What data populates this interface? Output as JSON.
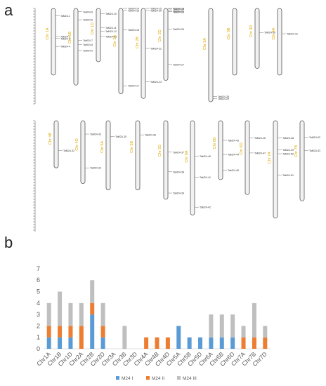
{
  "figure": {
    "panel_a_label": "a",
    "panel_b_label": "b"
  },
  "map": {
    "chromosomes": [
      {
        "name": "Chr 1A",
        "row": 1,
        "len": 100,
        "genes": [
          {
            "label": "TaM24-1",
            "pos": 11
          },
          {
            "label": "TaM24-2",
            "pos": 42
          },
          {
            "label": "TaM24-3",
            "pos": 45
          },
          {
            "label": "TaM24-4",
            "pos": 57
          }
        ]
      },
      {
        "name": "Chr 1B",
        "row": 1,
        "len": 115,
        "genes": [
          {
            "label": "TaM24-5",
            "pos": 5
          },
          {
            "label": "TaM24-6",
            "pos": 17
          },
          {
            "label": "TaM24-7",
            "pos": 48
          },
          {
            "label": "TaM24-8",
            "pos": 54
          },
          {
            "label": "TaM24-9",
            "pos": 63
          }
        ]
      },
      {
        "name": "Chr 1D",
        "row": 1,
        "len": 80,
        "genes": [
          {
            "label": "TaM24-10",
            "pos": 8
          },
          {
            "label": "TaM24-11",
            "pos": 29
          },
          {
            "label": "TaM24-12",
            "pos": 34
          },
          {
            "label": "TaM24-13",
            "pos": 42
          }
        ]
      },
      {
        "name": "Chr 2A",
        "row": 1,
        "len": 128,
        "genes": [
          {
            "label": "TaM24-14",
            "pos": 0
          },
          {
            "label": "TaM24-16",
            "pos": 3
          },
          {
            "label": "TaM24-18",
            "pos": 32
          },
          {
            "label": "TaM24-17",
            "pos": 116
          }
        ]
      },
      {
        "name": "Chr 2B",
        "row": 1,
        "len": 135,
        "genes": [
          {
            "label": "TaM24-15",
            "pos": 0
          },
          {
            "label": "TaM24-20",
            "pos": 3
          },
          {
            "label": "TaM24-22",
            "pos": 60
          },
          {
            "label": "TaM24-23",
            "pos": 110
          }
        ]
      },
      {
        "name": "Chr 2D",
        "row": 1,
        "len": 108,
        "genes": [
          {
            "label": "TaM24-19",
            "pos": 0
          },
          {
            "label": "TaM24-21",
            "pos": 4
          },
          {
            "label": "TaM24-24",
            "pos": 1
          },
          {
            "label": "TaM24-25",
            "pos": 5
          },
          {
            "label": "TaM24-26",
            "pos": 31
          },
          {
            "label": "TaM24-27",
            "pos": 84
          }
        ]
      },
      {
        "name": "Chr 3A",
        "row": 1,
        "len": 140,
        "genes": [
          {
            "label": "TaM24-28",
            "pos": 132
          },
          {
            "label": "TaM24-29",
            "pos": 135
          }
        ]
      },
      {
        "name": "Chr 3B",
        "row": 1,
        "len": 100,
        "genes": []
      },
      {
        "name": "Chr 3D",
        "row": 1,
        "len": 90,
        "genes": [
          {
            "label": "TaM24-30",
            "pos": 36
          }
        ]
      },
      {
        "name": "Chr 4A",
        "row": 1,
        "len": 100,
        "genes": [
          {
            "label": "TaM24-31",
            "pos": 38
          }
        ]
      },
      {
        "name": "Chr 4B",
        "row": 2,
        "len": 60,
        "genes": [
          {
            "label": "TaM24-32",
            "pos": 38
          }
        ]
      },
      {
        "name": "Chr 4D",
        "row": 2,
        "len": 80,
        "genes": [
          {
            "label": "TaM24-33",
            "pos": 17
          },
          {
            "label": "TaM24-34",
            "pos": 60
          }
        ]
      },
      {
        "name": "Chr 5A",
        "row": 2,
        "len": 88,
        "genes": [
          {
            "label": "TaM24-35",
            "pos": 20
          }
        ]
      },
      {
        "name": "Chr 5B",
        "row": 2,
        "len": 88,
        "genes": [
          {
            "label": "TaM24-36",
            "pos": 18
          }
        ]
      },
      {
        "name": "Chr 5D",
        "row": 2,
        "len": 100,
        "genes": [
          {
            "label": "TaM24-37",
            "pos": 40
          },
          {
            "label": "TaM24-38",
            "pos": 65
          },
          {
            "label": "TaM24-39",
            "pos": 92
          }
        ]
      },
      {
        "name": "Chr 6A",
        "row": 2,
        "len": 120,
        "genes": [
          {
            "label": "TaM24-40",
            "pos": 45
          },
          {
            "label": "TaM24-41",
            "pos": 72
          },
          {
            "label": "TaM24-42",
            "pos": 110
          }
        ]
      },
      {
        "name": "Chr 6B",
        "row": 2,
        "len": 75,
        "genes": [
          {
            "label": "TaM24-43",
            "pos": 25
          },
          {
            "label": "TaM24-44",
            "pos": 43
          },
          {
            "label": "TaM24-45",
            "pos": 63
          }
        ]
      },
      {
        "name": "Chr 6D",
        "row": 2,
        "len": 94,
        "genes": [
          {
            "label": "TaM24-46",
            "pos": 22
          },
          {
            "label": "TaM24-47",
            "pos": 41
          }
        ]
      },
      {
        "name": "Chr 7A",
        "row": 2,
        "len": 124,
        "genes": [
          {
            "label": "TaM24-48",
            "pos": 22
          },
          {
            "label": "TaM24-49",
            "pos": 37
          },
          {
            "label": "TaM24-50",
            "pos": 42
          },
          {
            "label": "TaM24-51",
            "pos": 69
          }
        ]
      },
      {
        "name": "Chr 7B",
        "row": 2,
        "len": 102,
        "genes": [
          {
            "label": "TaM24-52",
            "pos": 21
          },
          {
            "label": "TaM24-53",
            "pos": 38
          }
        ]
      }
    ]
  },
  "chart_data": {
    "type": "bar",
    "stacked": true,
    "categories": [
      "Chr1A",
      "Chr1B",
      "Chr1D",
      "Chr2A",
      "Chr2B",
      "Chr2D",
      "Chr3A",
      "Chr3B",
      "Chr3D",
      "Chr4A",
      "Chr4B",
      "Chr4D",
      "Chr5A",
      "Chr5B",
      "Chr5D",
      "Chr6A",
      "Chr6B",
      "Chr6D",
      "Chr7A",
      "Chr7B",
      "Chr7D"
    ],
    "series": [
      {
        "name": "M24 I",
        "color": "#5b9bd5",
        "values": [
          1,
          1,
          1,
          0,
          3,
          1,
          0,
          0,
          0,
          0,
          0,
          0,
          2,
          1,
          1,
          1,
          1,
          1,
          0,
          0,
          0
        ]
      },
      {
        "name": "M24 II",
        "color": "#ed7d31",
        "values": [
          1,
          1,
          1,
          2,
          1,
          1,
          0,
          0,
          0,
          1,
          1,
          1,
          0,
          0,
          0,
          0,
          0,
          0,
          1,
          1,
          1
        ]
      },
      {
        "name": "M24 III",
        "color": "#bfbfbf",
        "values": [
          2,
          3,
          2,
          2,
          2,
          2,
          0,
          2,
          0,
          0,
          0,
          0,
          0,
          0,
          0,
          2,
          2,
          2,
          1,
          3,
          1
        ]
      }
    ],
    "ylim": [
      0,
      7
    ],
    "yticks": [
      "0",
      "1",
      "2",
      "3",
      "4",
      "5",
      "6",
      "7"
    ],
    "grid": false,
    "legend": "bottom"
  }
}
